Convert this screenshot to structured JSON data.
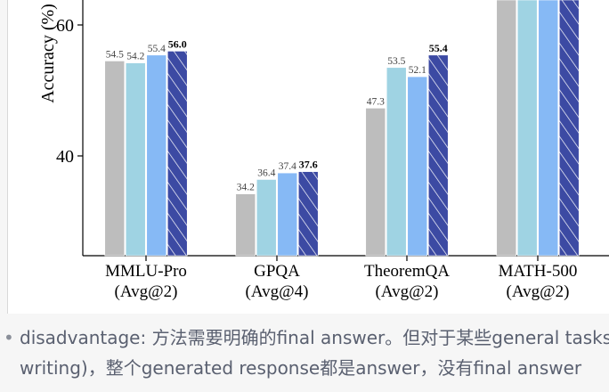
{
  "chart_data": {
    "type": "bar",
    "ylabel": "Accuracy (%)",
    "yticks": [
      40,
      60
    ],
    "ylim": [
      25,
      65
    ],
    "groups": [
      {
        "line1": "MMLU-Pro",
        "line2": "(Avg@2)",
        "values": [
          54.5,
          54.2,
          55.4,
          56.0
        ],
        "labels": [
          "54.5",
          "54.2",
          "55.4",
          "56.0"
        ]
      },
      {
        "line1": "GPQA",
        "line2": "(Avg@4)",
        "values": [
          34.2,
          36.4,
          37.4,
          37.6
        ],
        "labels": [
          "34.2",
          "36.4",
          "37.4",
          "37.6"
        ]
      },
      {
        "line1": "TheoremQA",
        "line2": "(Avg@2)",
        "values": [
          47.3,
          53.5,
          52.1,
          55.4
        ],
        "labels": [
          "47.3",
          "53.5",
          "52.1",
          "55.4"
        ]
      },
      {
        "line1": "MATH-500",
        "line2": "(Avg@2)",
        "values": [
          75,
          75,
          75,
          75
        ],
        "labels": [
          "",
          "",
          "",
          ""
        ]
      }
    ],
    "series_colors": [
      "#bdbdbd",
      "#9fd3e3",
      "#86b9f5",
      "#3c4aa3"
    ]
  },
  "note": {
    "line1": "disadvantage: 方法需要明确的final answer。但对于某些general tasks (e.g.,",
    "line2": "writing)，整个generated response都是answer，没有final answer"
  }
}
